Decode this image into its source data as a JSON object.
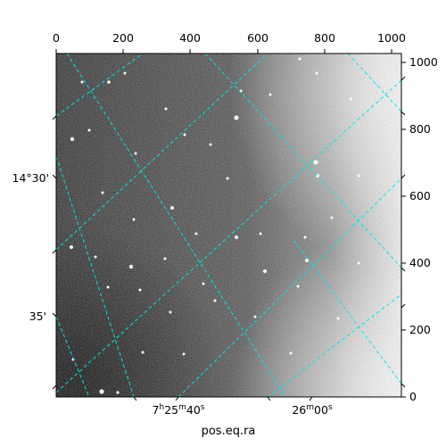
{
  "image": {
    "description_type": "astronomical-wcs-plot",
    "colormap": "grayscale",
    "grid_color": "#00e5e5"
  },
  "axes": {
    "top_ticks": [
      "0",
      "200",
      "400",
      "600",
      "800",
      "1000"
    ],
    "right_ticks": [
      "0",
      "200",
      "400",
      "600",
      "800",
      "1000"
    ],
    "left_ticks": [
      "14°30'",
      "35'"
    ],
    "bottom_ticks": [
      {
        "h": "7",
        "m": "25",
        "s": "40"
      },
      {
        "h": "",
        "m": "26",
        "s": "00"
      }
    ],
    "xlabel": "pos.eq.ra"
  }
}
